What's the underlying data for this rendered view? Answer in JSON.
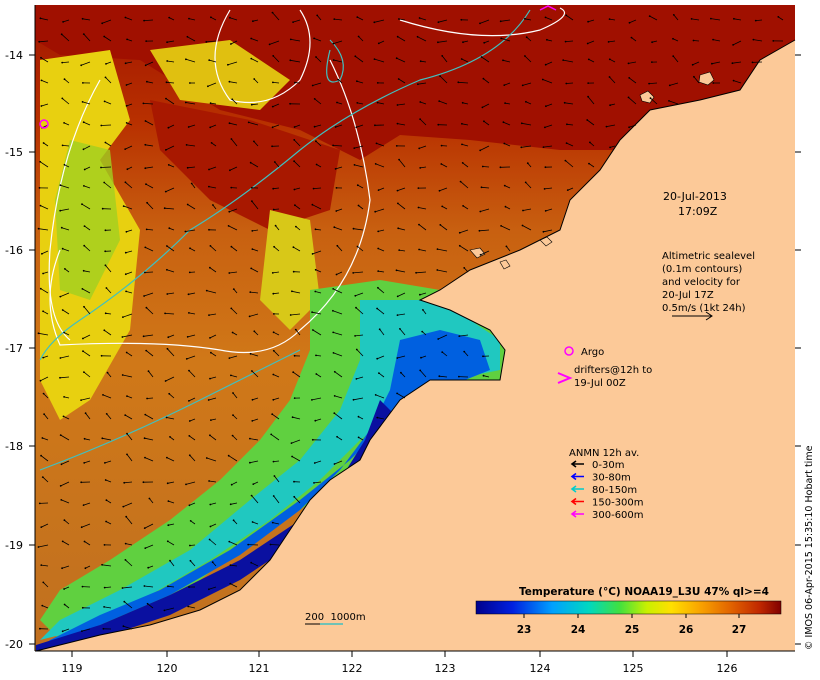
{
  "map": {
    "lon_ticks": [
      "119",
      "120",
      "121",
      "122",
      "123",
      "124",
      "125",
      "126"
    ],
    "lat_ticks": [
      "-14",
      "-15",
      "-16",
      "-17",
      "-18",
      "-19",
      "-20"
    ],
    "date_label": "20-Jul-2013",
    "time_label": "17:09Z",
    "altimetry_note": [
      "Altimetric sealevel",
      "(0.1m contours)",
      "and velocity for",
      "20-Jul 17Z",
      "0.5m/s (1kt 24h)"
    ],
    "argo_label": "Argo",
    "drifters_label": [
      "drifters@12h to",
      "19-Jul 00Z"
    ],
    "anmn_title": "ANMN 12h av.",
    "anmn_items": [
      {
        "label": "0-30m",
        "color": "#000000"
      },
      {
        "label": "30-80m",
        "color": "#0000ff"
      },
      {
        "label": "80-150m",
        "color": "#00cccc"
      },
      {
        "label": "150-300m",
        "color": "#ff0000"
      },
      {
        "label": "300-600m",
        "color": "#ff00ff"
      }
    ],
    "colorbar_title": "Temperature (°C) NOAA19_L3U 47% ql>=4",
    "colorbar_ticks": [
      "23",
      "24",
      "25",
      "26",
      "27"
    ],
    "depth_scale_label": "200  1000m",
    "credit": "© IMOS 06-Apr-2015 15:35:10 Hobart time",
    "colors": {
      "land": "#fcc998",
      "warm": "#b02000",
      "cool": "#1010b0",
      "contour_white": "#ffffff",
      "contour_cyan": "#40c0c0",
      "marker": "#ff00ff"
    }
  }
}
